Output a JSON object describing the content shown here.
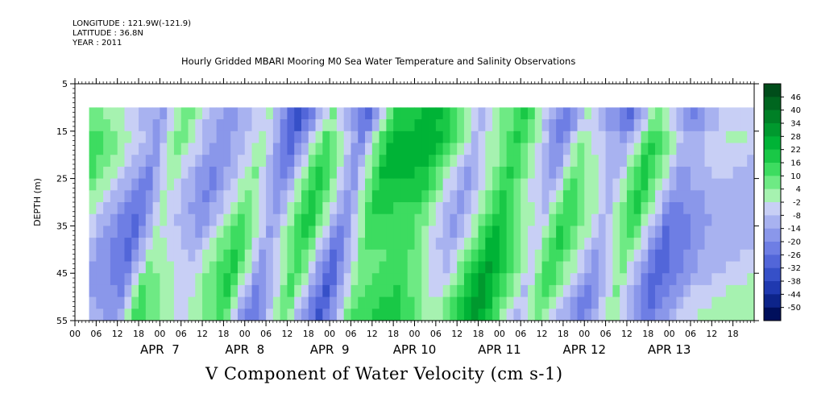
{
  "header": {
    "longitude": "LONGITUDE : 121.9W(-121.9)",
    "latitude": "LATITUDE : 36.8N",
    "year": "YEAR : 2011"
  },
  "chart_data": {
    "type": "heatmap",
    "title": "Hourly Gridded MBARI Mooring M0 Sea Water Temperature and Salinity Observations",
    "xlabel": "V Component of Water Velocity (cm s-1)",
    "ylabel": "DEPTH (m)",
    "ylim": [
      5,
      55
    ],
    "y_ticks": [
      5,
      15,
      25,
      35,
      45,
      55
    ],
    "y_inverted": true,
    "x_hour_ticks": [
      "00",
      "06",
      "12",
      "18",
      "00",
      "06",
      "12",
      "18",
      "00",
      "06",
      "12",
      "18",
      "00",
      "06",
      "12",
      "18",
      "00",
      "06",
      "12",
      "18",
      "00",
      "06",
      "12",
      "18",
      "00",
      "06",
      "12",
      "18",
      "00",
      "06",
      "12",
      "18"
    ],
    "x_day_labels": [
      "APR  7",
      "APR  8",
      "APR  9",
      "APR 10",
      "APR 11",
      "APR 12",
      "APR 13"
    ],
    "x_start": "2011-04-06T00:00",
    "x_end": "2011-04-13T23:00",
    "data_start": "2011-04-06T04:00",
    "depth_range": [
      10,
      55
    ],
    "colorbar": {
      "levels": [
        46,
        40,
        34,
        28,
        22,
        16,
        10,
        4,
        -2,
        -8,
        -14,
        -20,
        -26,
        -32,
        -38,
        -44,
        -50
      ],
      "colors": [
        "#004d1a",
        "#00661f",
        "#008026",
        "#00992e",
        "#00b336",
        "#19c846",
        "#3ddc60",
        "#6eea84",
        "#a6f2b0",
        "#c8cff5",
        "#a8b2f0",
        "#8a97ea",
        "#6e7ee4",
        "#5266d9",
        "#3650c8",
        "#1f39b0",
        "#0d248a",
        "#000f5c"
      ]
    },
    "v_velocity_pattern": [
      {
        "time": "2011-04-06T06:00",
        "v": 6
      },
      {
        "time": "2011-04-06T18:00",
        "v": -12
      },
      {
        "time": "2011-04-07T00:00",
        "v": -20
      },
      {
        "time": "2011-04-07T06:00",
        "v": 8
      },
      {
        "time": "2011-04-07T18:00",
        "v": -14
      },
      {
        "time": "2011-04-08T06:00",
        "v": 10
      },
      {
        "time": "2011-04-08T14:00",
        "v": -24
      },
      {
        "time": "2011-04-09T00:00",
        "v": 14
      },
      {
        "time": "2011-04-09T10:00",
        "v": -26
      },
      {
        "time": "2011-04-09T18:00",
        "v": 16
      },
      {
        "time": "2011-04-10T06:00",
        "v": 20
      },
      {
        "time": "2011-04-10T18:00",
        "v": -10
      },
      {
        "time": "2011-04-11T06:00",
        "v": 24
      },
      {
        "time": "2011-04-11T18:00",
        "v": -14
      },
      {
        "time": "2011-04-12T00:00",
        "v": 10
      },
      {
        "time": "2011-04-12T12:00",
        "v": -18
      },
      {
        "time": "2011-04-12T20:00",
        "v": 12
      },
      {
        "time": "2011-04-13T06:00",
        "v": -22
      },
      {
        "time": "2011-04-13T18:00",
        "v": -6
      }
    ]
  }
}
